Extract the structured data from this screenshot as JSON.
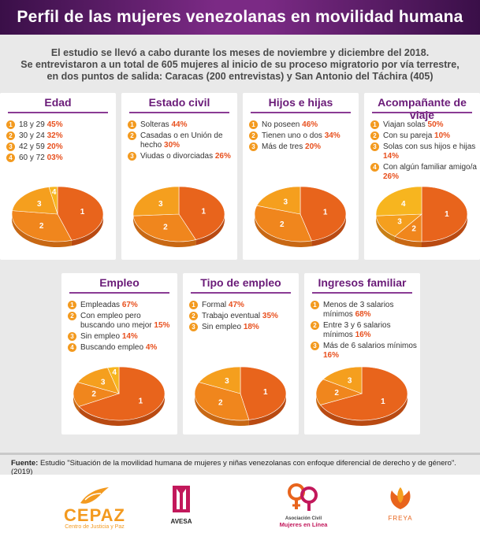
{
  "title": "Perfil de las mujeres venezolanas en movilidad humana",
  "intro": {
    "line1": "El estudio se llevó a cabo durante los meses de noviembre y diciembre del 2018.",
    "line2": "Se entrevistaron a un total de 605 mujeres al inicio de su proceso migratorio por vía terrestre,",
    "line3": "en dos puntos de salida: Caracas (200 entrevistas) y San Antonio del Táchira (405)"
  },
  "colors": {
    "slice1": "#e8641c",
    "slice2": "#f0861d",
    "slice3": "#f59f1e",
    "slice4": "#f7b51f",
    "header": "#7b2a85",
    "title_purple": "#6a1b78",
    "pct": "#e8501e"
  },
  "chart_data": [
    {
      "type": "pie",
      "title": "Edad",
      "categories": [
        "18 y 29",
        "30 y 24",
        "42 y 59",
        "60 y 72"
      ],
      "values": [
        45,
        32,
        20,
        3
      ],
      "value_labels": [
        "45%",
        "32%",
        "20%",
        "03%"
      ],
      "slice_labels": [
        "1",
        "2",
        "3",
        "4"
      ]
    },
    {
      "type": "pie",
      "title": "Estado civil",
      "categories": [
        "Solteras",
        "Casadas o en Unión de hecho",
        "Viudas o divorciadas"
      ],
      "values": [
        44,
        30,
        26
      ],
      "value_labels": [
        "44%",
        "30%",
        "26%"
      ],
      "slice_labels": [
        "1",
        "2",
        "3"
      ]
    },
    {
      "type": "pie",
      "title": "Hijos e hijas",
      "categories": [
        "No poseen",
        "Tienen uno o dos",
        "Más de tres"
      ],
      "values": [
        46,
        34,
        20
      ],
      "value_labels": [
        "46%",
        "34%",
        "20%"
      ],
      "slice_labels": [
        "1",
        "2",
        "3"
      ]
    },
    {
      "type": "pie",
      "title": "Acompañante de viaje",
      "categories": [
        "Viajan solas",
        "Con su pareja",
        "Solas con sus hijos e hijas",
        "Con algún familiar amigo/a"
      ],
      "values": [
        50,
        10,
        14,
        26
      ],
      "value_labels": [
        "50%",
        "10%",
        "14%",
        "26%"
      ],
      "slice_labels": [
        "1",
        "2",
        "3",
        "4"
      ]
    },
    {
      "type": "pie",
      "title": "Empleo",
      "categories": [
        "Empleadas",
        "Con empleo pero buscando uno mejor",
        "Sin empleo",
        "Buscando empleo"
      ],
      "values": [
        67,
        15,
        14,
        4
      ],
      "value_labels": [
        "67%",
        "15%",
        "14%",
        "4%"
      ],
      "slice_labels": [
        "1",
        "2",
        "3",
        "4"
      ]
    },
    {
      "type": "pie",
      "title": "Tipo de empleo",
      "categories": [
        "Formal",
        "Trabajo eventual",
        "Sin empleo"
      ],
      "values": [
        47,
        35,
        18
      ],
      "value_labels": [
        "47%",
        "35%",
        "18%"
      ],
      "slice_labels": [
        "1",
        "2",
        "3"
      ]
    },
    {
      "type": "pie",
      "title": "Ingresos familiar",
      "categories": [
        "Menos de 3 salarios mínimos",
        "Entre 3 y 6 salarios mínimos",
        "Más de 6 salarios mínimos"
      ],
      "values": [
        68,
        16,
        16
      ],
      "value_labels": [
        "68%",
        "16%",
        "16%"
      ],
      "slice_labels": [
        "1",
        "2",
        "3"
      ]
    }
  ],
  "source": {
    "label": "Fuente:",
    "text": "Estudio \"Situación de la movilidad humana de mujeres y niñas venezolanas con enfoque diferencial de derecho y de género\". (2019)"
  },
  "logos": {
    "cepaz": "CEPAZ",
    "cepaz_sub": "Centro de Justicia y Paz",
    "avesa": "AVESA",
    "mujeres_line1": "Asociación Civil",
    "mujeres_line2": "Mujeres en Línea",
    "freya": "FREYA"
  }
}
